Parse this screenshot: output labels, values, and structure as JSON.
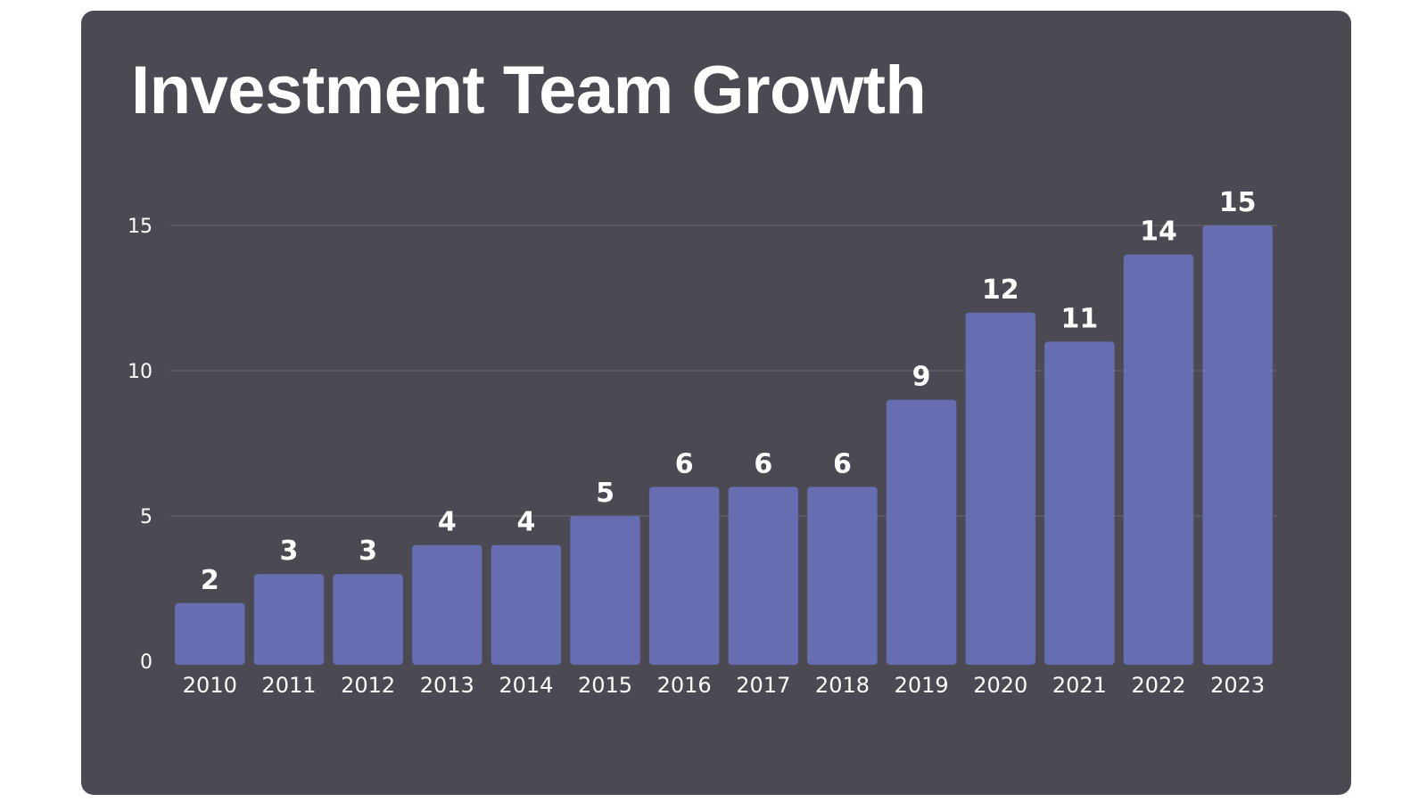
{
  "chart_data": {
    "type": "bar",
    "title": "Investment Team Growth",
    "xlabel": "",
    "ylabel": "",
    "categories": [
      "2010",
      "2011",
      "2012",
      "2013",
      "2014",
      "2015",
      "2016",
      "2017",
      "2018",
      "2019",
      "2020",
      "2021",
      "2022",
      "2023"
    ],
    "values": [
      2,
      3,
      3,
      4,
      4,
      5,
      6,
      6,
      6,
      9,
      12,
      11,
      14,
      15
    ],
    "ylim": [
      0,
      15
    ],
    "yticks": [
      0,
      5,
      10,
      15
    ],
    "grid": true,
    "legend": "none",
    "colors": {
      "background": "#4b4a53",
      "bar": "#666db0",
      "text": "#ffffff",
      "grid": "#6a6972"
    }
  }
}
